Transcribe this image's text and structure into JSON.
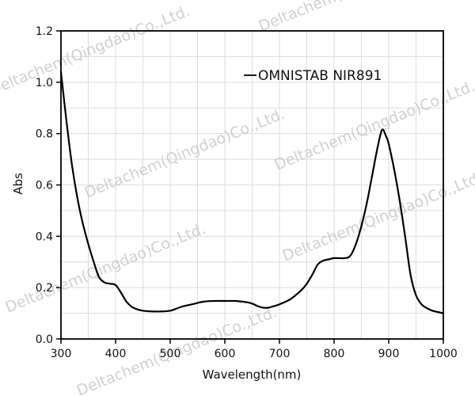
{
  "chart_data": {
    "type": "line",
    "title": "",
    "xlabel": "Wavelength(nm)",
    "ylabel": "Abs",
    "xlim": [
      300,
      1000
    ],
    "ylim": [
      0.0,
      1.2
    ],
    "x_ticks": [
      "300",
      "400",
      "500",
      "600",
      "700",
      "800",
      "900",
      "1000"
    ],
    "y_ticks": [
      "0.0",
      "0.2",
      "0.4",
      "0.6",
      "0.8",
      "1.0",
      "1.2"
    ],
    "grid": true,
    "legend_position": "upper-right",
    "series": [
      {
        "name": "OMNISTAB NIR891",
        "color": "#000000",
        "x": [
          300,
          310,
          320,
          330,
          340,
          350,
          360,
          370,
          380,
          390,
          400,
          410,
          420,
          430,
          440,
          450,
          460,
          480,
          500,
          520,
          540,
          560,
          580,
          600,
          620,
          640,
          650,
          660,
          670,
          680,
          690,
          700,
          720,
          740,
          750,
          760,
          770,
          780,
          790,
          800,
          820,
          830,
          840,
          850,
          860,
          870,
          880,
          888,
          895,
          900,
          910,
          920,
          930,
          940,
          950,
          960,
          970,
          980,
          990,
          1000
        ],
        "y": [
          1.04,
          0.85,
          0.68,
          0.55,
          0.45,
          0.37,
          0.3,
          0.24,
          0.22,
          0.215,
          0.21,
          0.18,
          0.145,
          0.125,
          0.115,
          0.11,
          0.108,
          0.107,
          0.11,
          0.125,
          0.135,
          0.145,
          0.148,
          0.148,
          0.148,
          0.143,
          0.138,
          0.128,
          0.122,
          0.122,
          0.128,
          0.135,
          0.155,
          0.19,
          0.215,
          0.25,
          0.29,
          0.305,
          0.31,
          0.315,
          0.315,
          0.325,
          0.37,
          0.44,
          0.53,
          0.64,
          0.75,
          0.815,
          0.79,
          0.76,
          0.66,
          0.54,
          0.4,
          0.25,
          0.17,
          0.135,
          0.12,
          0.11,
          0.105,
          0.1
        ]
      }
    ],
    "watermark": "Deltachem(Qingdao)Co.,Ltd."
  },
  "labels": {
    "xlabel": "Wavelength(nm)",
    "ylabel": "Abs",
    "legend": "OMNISTAB NIR891",
    "watermark": "Deltachem(Qingdao)Co.,Ltd."
  }
}
